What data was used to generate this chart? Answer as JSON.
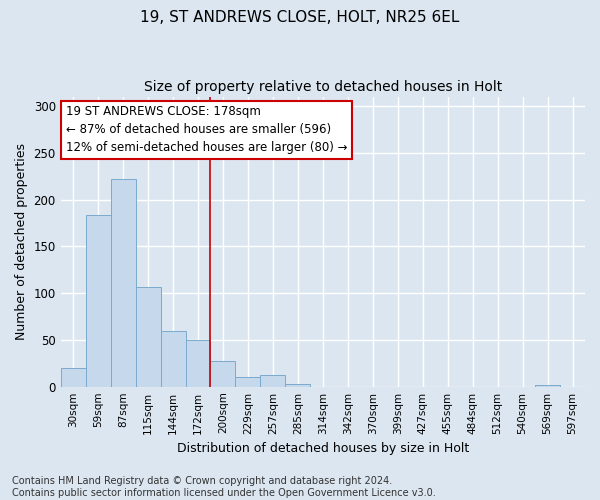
{
  "title1": "19, ST ANDREWS CLOSE, HOLT, NR25 6EL",
  "title2": "Size of property relative to detached houses in Holt",
  "xlabel": "Distribution of detached houses by size in Holt",
  "ylabel": "Number of detached properties",
  "categories": [
    "30sqm",
    "59sqm",
    "87sqm",
    "115sqm",
    "144sqm",
    "172sqm",
    "200sqm",
    "229sqm",
    "257sqm",
    "285sqm",
    "314sqm",
    "342sqm",
    "370sqm",
    "399sqm",
    "427sqm",
    "455sqm",
    "484sqm",
    "512sqm",
    "540sqm",
    "569sqm",
    "597sqm"
  ],
  "bar_values": [
    20,
    183,
    222,
    107,
    60,
    50,
    27,
    10,
    13,
    3,
    0,
    0,
    0,
    0,
    0,
    0,
    0,
    0,
    0,
    2,
    0
  ],
  "bar_color": "#c5d8ec",
  "bar_edge_color": "#7aaace",
  "vline_x": 5.5,
  "vline_color": "#cc0000",
  "annotation_text": "19 ST ANDREWS CLOSE: 178sqm\n← 87% of detached houses are smaller (596)\n12% of semi-detached houses are larger (80) →",
  "annotation_box_color": "white",
  "annotation_box_edge_color": "#cc0000",
  "ylim": [
    0,
    310
  ],
  "yticks": [
    0,
    50,
    100,
    150,
    200,
    250,
    300
  ],
  "background_color": "#dce6f0",
  "grid_color": "white",
  "footnote": "Contains HM Land Registry data © Crown copyright and database right 2024.\nContains public sector information licensed under the Open Government Licence v3.0.",
  "title1_fontsize": 11,
  "title2_fontsize": 10,
  "xlabel_fontsize": 9,
  "ylabel_fontsize": 9,
  "annotation_fontsize": 8.5,
  "footnote_fontsize": 7
}
